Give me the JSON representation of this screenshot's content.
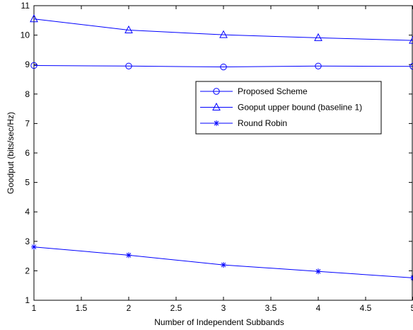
{
  "chart_data": {
    "type": "line",
    "x": [
      1,
      2,
      3,
      4,
      5
    ],
    "series": [
      {
        "name": "Proposed Scheme",
        "marker": "circle",
        "values": [
          8.97,
          8.95,
          8.92,
          8.95,
          8.94
        ]
      },
      {
        "name": "Gooput upper bound (baseline 1)",
        "marker": "triangle",
        "values": [
          10.55,
          10.17,
          10.01,
          9.91,
          9.82
        ]
      },
      {
        "name": "Round Robin",
        "marker": "star",
        "values": [
          2.81,
          2.53,
          2.2,
          1.98,
          1.76
        ]
      }
    ],
    "title": "",
    "xlabel": "Number of Independent Subbands",
    "ylabel": "Goodput (bits/sec/Hz)",
    "xlim": [
      1,
      5
    ],
    "ylim": [
      1,
      11
    ],
    "xticks": [
      "1",
      "1.5",
      "2",
      "2.5",
      "3",
      "3.5",
      "4",
      "4.5",
      "5"
    ],
    "yticks": [
      "1",
      "2",
      "3",
      "4",
      "5",
      "6",
      "7",
      "8",
      "9",
      "10",
      "11"
    ],
    "grid": false,
    "legend_position": "center-right",
    "line_color": "#0000ff"
  }
}
